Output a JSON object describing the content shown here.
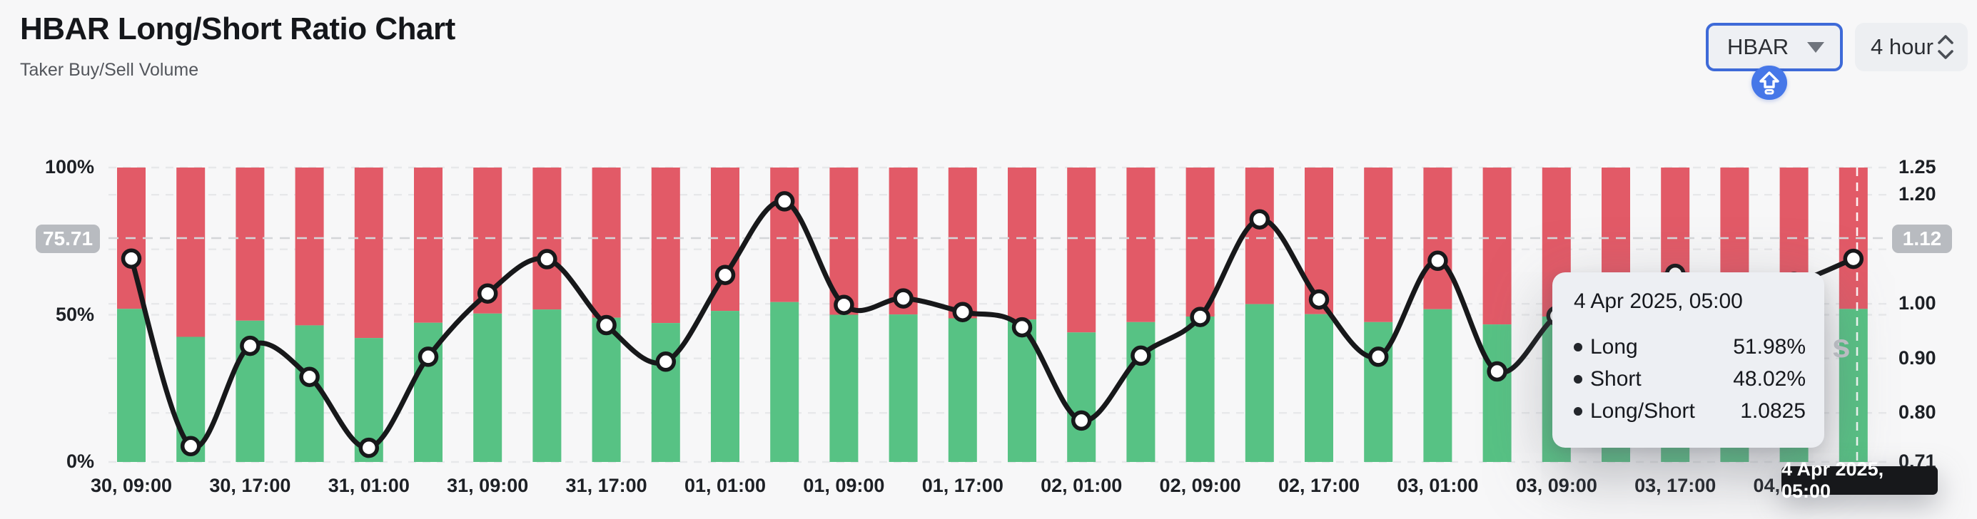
{
  "header": {
    "title": "HBAR Long/Short Ratio Chart",
    "subtitle": "Taker Buy/Sell Volume"
  },
  "controls": {
    "symbol_select": {
      "value": "HBAR"
    },
    "interval_select": {
      "value": "4 hour"
    }
  },
  "colors": {
    "long_green": "#57c284",
    "short_red": "#e25a67",
    "ratio_line": "#17181a",
    "background": "#f7f7f8",
    "gridline": "#e7e8ea",
    "accent_blue": "#4677e8",
    "select_border_blue": "#3e6ad8",
    "badge_gray": "#b8bbc0",
    "tooltip_bg": "#edeff3"
  },
  "chart_data": {
    "type": "stacked-bar+line",
    "bar_count": 30,
    "title": "HBAR Long/Short Ratio Chart",
    "x_tick_labels": [
      "30, 09:00",
      "30, 17:00",
      "31, 01:00",
      "31, 09:00",
      "31, 17:00",
      "01, 01:00",
      "01, 09:00",
      "01, 17:00",
      "02, 01:00",
      "02, 09:00",
      "02, 17:00",
      "03, 01:00",
      "03, 09:00",
      "03, 17:00",
      "04, 01:00"
    ],
    "x_tick_every_n_bars": 2,
    "series": [
      {
        "name": "Long",
        "unit": "%",
        "color": "#57c284",
        "values": [
          52.0,
          42.5,
          48.0,
          46.4,
          42.1,
          47.3,
          50.4,
          51.8,
          49.0,
          47.2,
          51.3,
          54.3,
          50.0,
          50.1,
          48.8,
          48.4,
          44.0,
          47.5,
          49.4,
          53.6,
          50.2,
          47.5,
          51.9,
          46.7,
          49.4,
          50.8,
          51.3,
          50.9,
          51.0,
          51.98
        ]
      },
      {
        "name": "Short",
        "unit": "%",
        "color": "#e25a67",
        "derived": "100 - Long"
      },
      {
        "name": "Long/Short",
        "axis": "right",
        "color": "#17181a",
        "values": [
          1.083,
          0.739,
          0.923,
          0.866,
          0.736,
          0.903,
          1.019,
          1.082,
          0.961,
          0.894,
          1.053,
          1.188,
          0.998,
          1.01,
          0.985,
          0.957,
          0.786,
          0.905,
          0.976,
          1.155,
          1.008,
          0.903,
          1.079,
          0.876,
          0.978,
          1.031,
          1.055,
          1.035,
          1.04,
          1.0825
        ]
      }
    ],
    "left_axis": {
      "tick_labels": [
        "100%",
        "50%",
        "0%"
      ],
      "tick_values": [
        100,
        50,
        0
      ],
      "min": 0,
      "max": 100
    },
    "right_axis": {
      "tick_labels": [
        "1.25",
        "1.20",
        "1.00",
        "0.90",
        "0.80",
        "0.71"
      ],
      "tick_values": [
        1.25,
        1.2,
        1.0,
        0.9,
        0.8,
        0.71
      ],
      "min": 0.71,
      "max": 1.25
    },
    "gridline_values_right": [
      1.25,
      1.2,
      1.1,
      1.0,
      0.9,
      0.8,
      0.71
    ],
    "gridline_values_left": [
      50
    ],
    "grid": "dashed",
    "crosshair": {
      "left_badge": "75.71",
      "right_badge": "1.12",
      "snapped_bar_index": 29
    }
  },
  "tooltip": {
    "title": "4 Apr 2025, 05:00",
    "rows": [
      {
        "label": "Long",
        "value": "51.98%"
      },
      {
        "label": "Short",
        "value": "48.02%"
      },
      {
        "label": "Long/Short",
        "value": "1.0825"
      }
    ]
  },
  "x_axis_tooltip": {
    "text": "4 Apr 2025, 05:00"
  },
  "watermark": {
    "visible_text": "s"
  }
}
